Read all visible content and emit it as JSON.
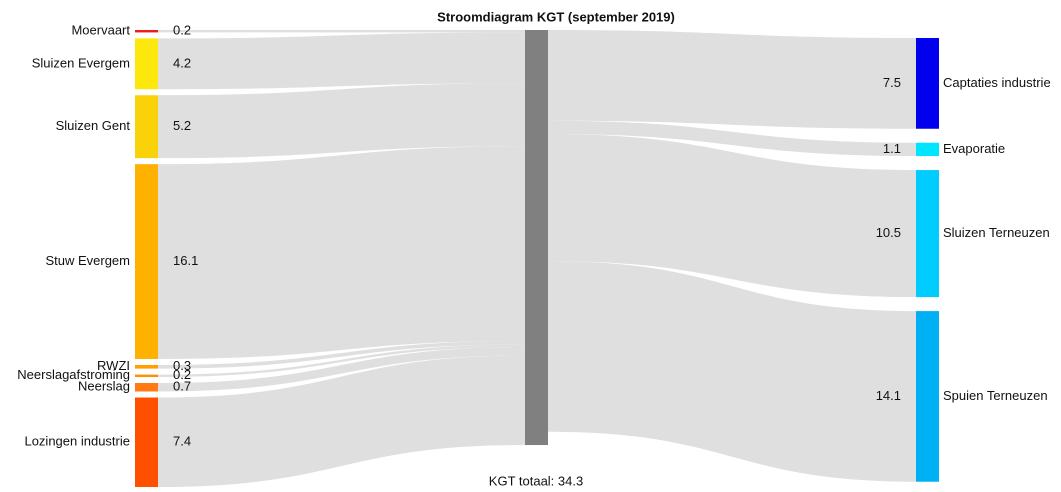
{
  "chart_data": {
    "type": "sankey",
    "title": "Stroomdiagram KGT (september 2019)",
    "footer": "KGT totaal: 34.3",
    "sources": [
      {
        "name": "Moervaart",
        "value": 0.2,
        "color": "#ee1c1c"
      },
      {
        "name": "Sluizen Evergem",
        "value": 4.2,
        "color": "#fce80c"
      },
      {
        "name": "Sluizen Gent",
        "value": 5.2,
        "color": "#fad20a"
      },
      {
        "name": "Stuw Evergem",
        "value": 16.1,
        "color": "#ffb100"
      },
      {
        "name": "RWZI",
        "value": 0.3,
        "color": "#ffa000"
      },
      {
        "name": "Neerslagafstroming",
        "value": 0.2,
        "color": "#ff9000"
      },
      {
        "name": "Neerslag",
        "value": 0.7,
        "color": "#ff7a10"
      },
      {
        "name": "Lozingen industrie",
        "value": 7.4,
        "color": "#ff5000"
      }
    ],
    "hub_color": "#808080",
    "targets": [
      {
        "name": "Captaties industrie",
        "value": 7.5,
        "color": "#0000ee"
      },
      {
        "name": "Evaporatie",
        "value": 1.1,
        "color": "#00e5ff"
      },
      {
        "name": "Sluizen Terneuzen",
        "value": 10.5,
        "color": "#00ccff"
      },
      {
        "name": "Spuien Terneuzen",
        "value": 14.1,
        "color": "#00b0f5"
      }
    ]
  }
}
